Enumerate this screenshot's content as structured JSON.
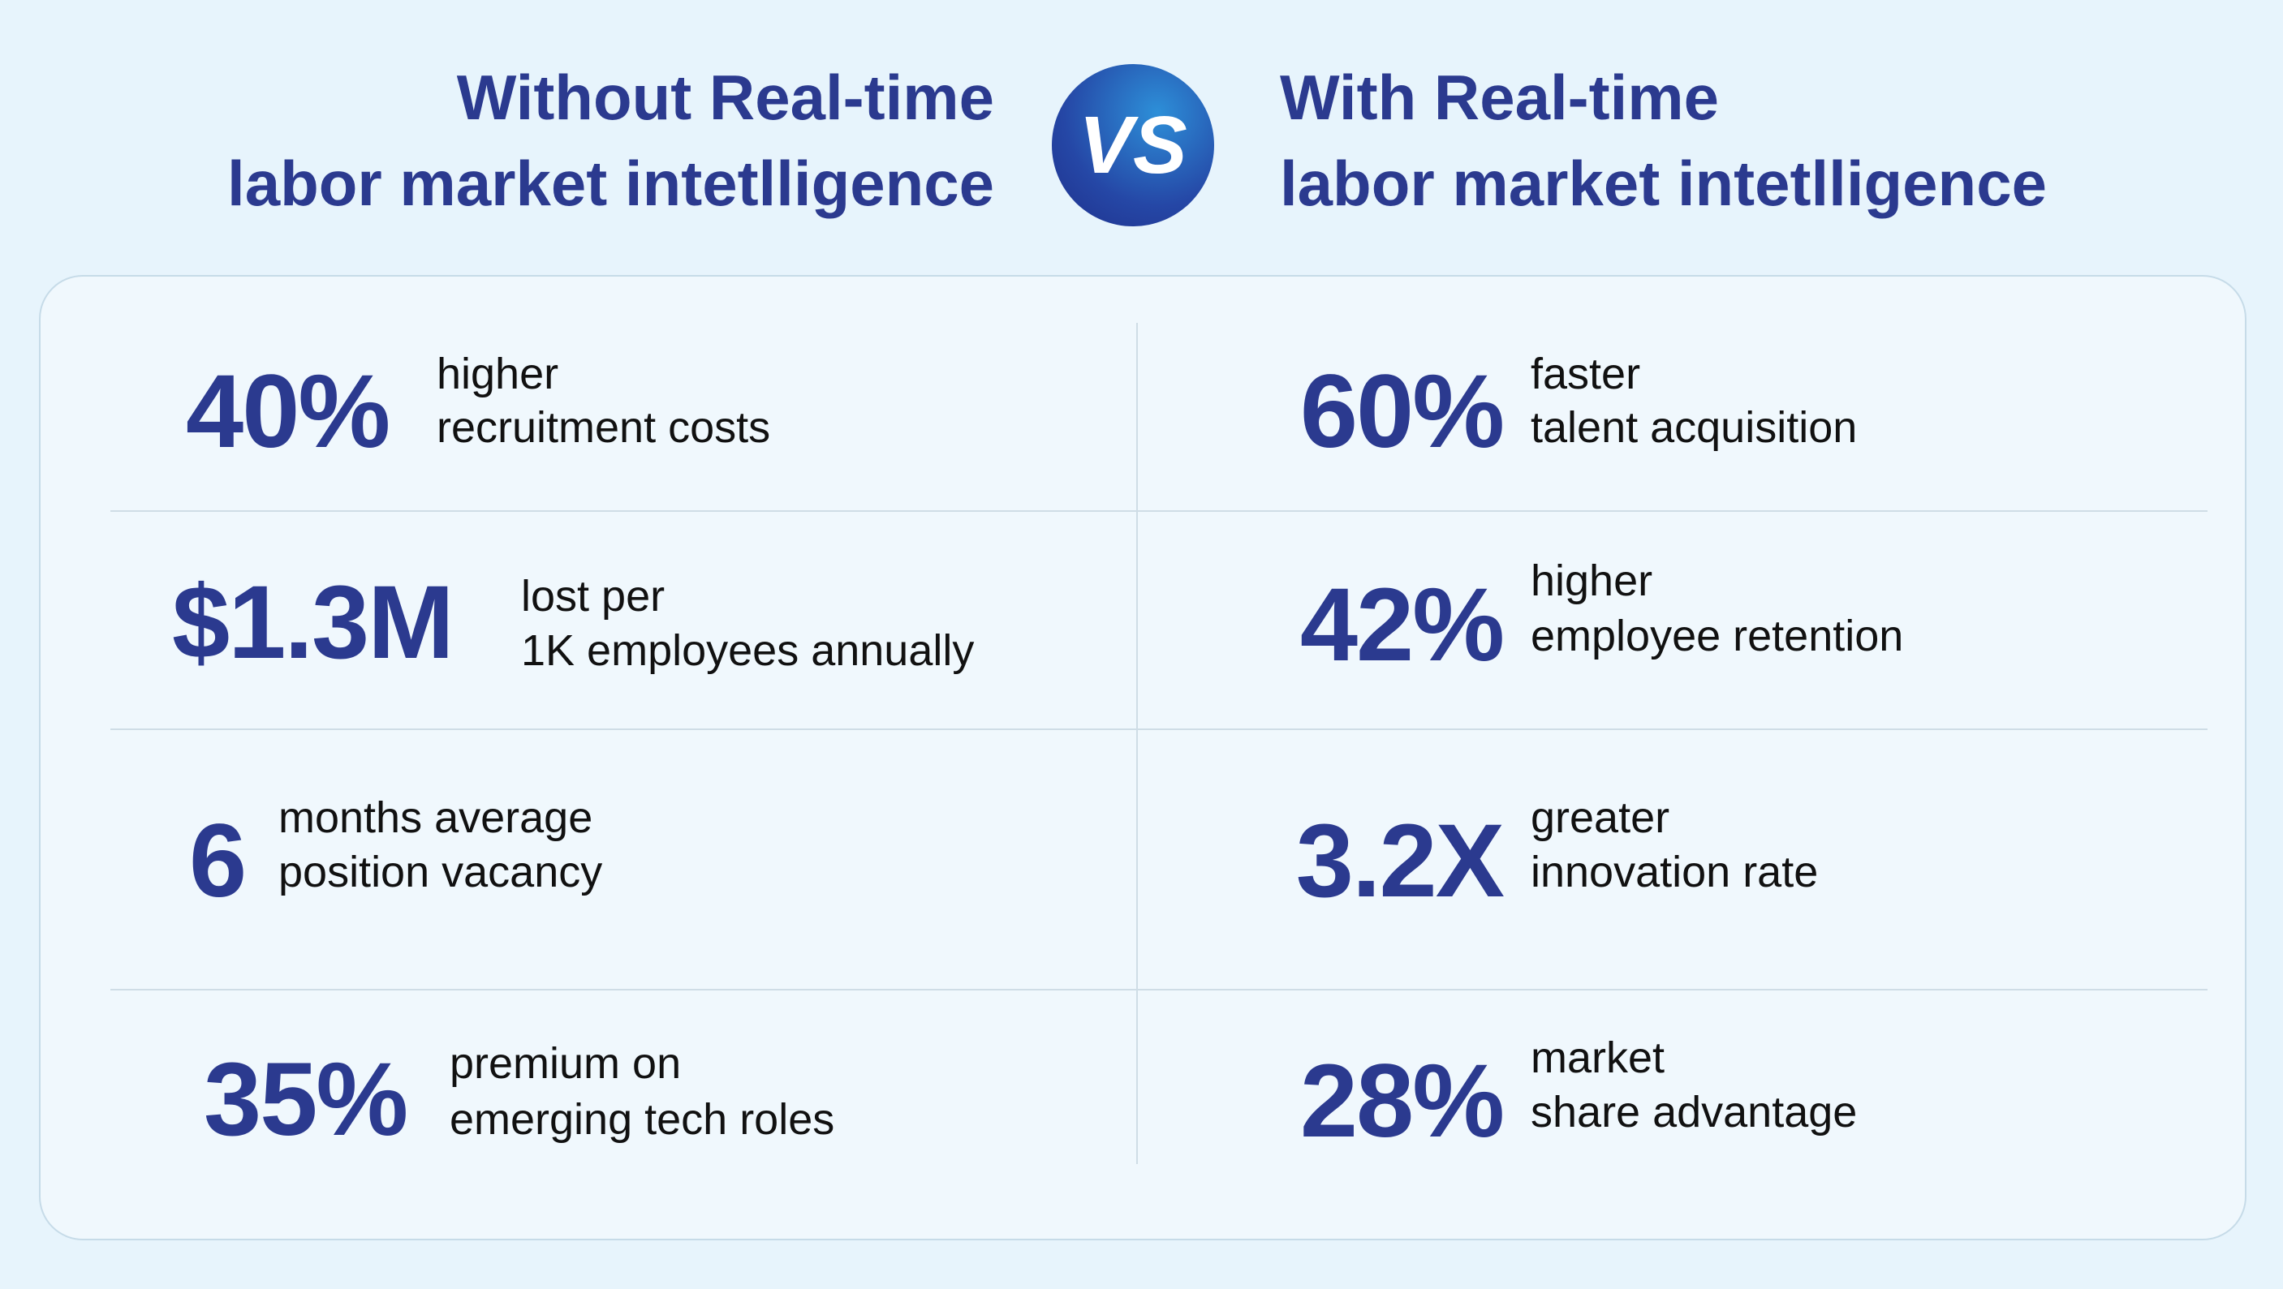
{
  "header": {
    "left_title": [
      "Without Real-time",
      "labor market intetlligence"
    ],
    "vs": "VS",
    "right_title": [
      "With Real-time",
      "labor market intetlligence"
    ]
  },
  "left_column": [
    {
      "stat": "40%",
      "description": [
        "higher",
        "recruitment costs"
      ]
    },
    {
      "stat": "$1.3M",
      "description": [
        "lost per",
        "1K employees annually"
      ]
    },
    {
      "stat": "6",
      "description": [
        "months average",
        "position vacancy"
      ]
    },
    {
      "stat": "35%",
      "description": [
        "premium on",
        "emerging tech roles"
      ]
    }
  ],
  "right_column": [
    {
      "stat": "60%",
      "description": [
        "faster",
        "talent acquisition"
      ]
    },
    {
      "stat": "42%",
      "description": [
        "higher",
        "employee retention"
      ]
    },
    {
      "stat": "3.2X",
      "description": [
        "greater",
        "innovation rate"
      ]
    },
    {
      "stat": "28%",
      "description": [
        "market",
        "share advantage"
      ]
    }
  ]
}
